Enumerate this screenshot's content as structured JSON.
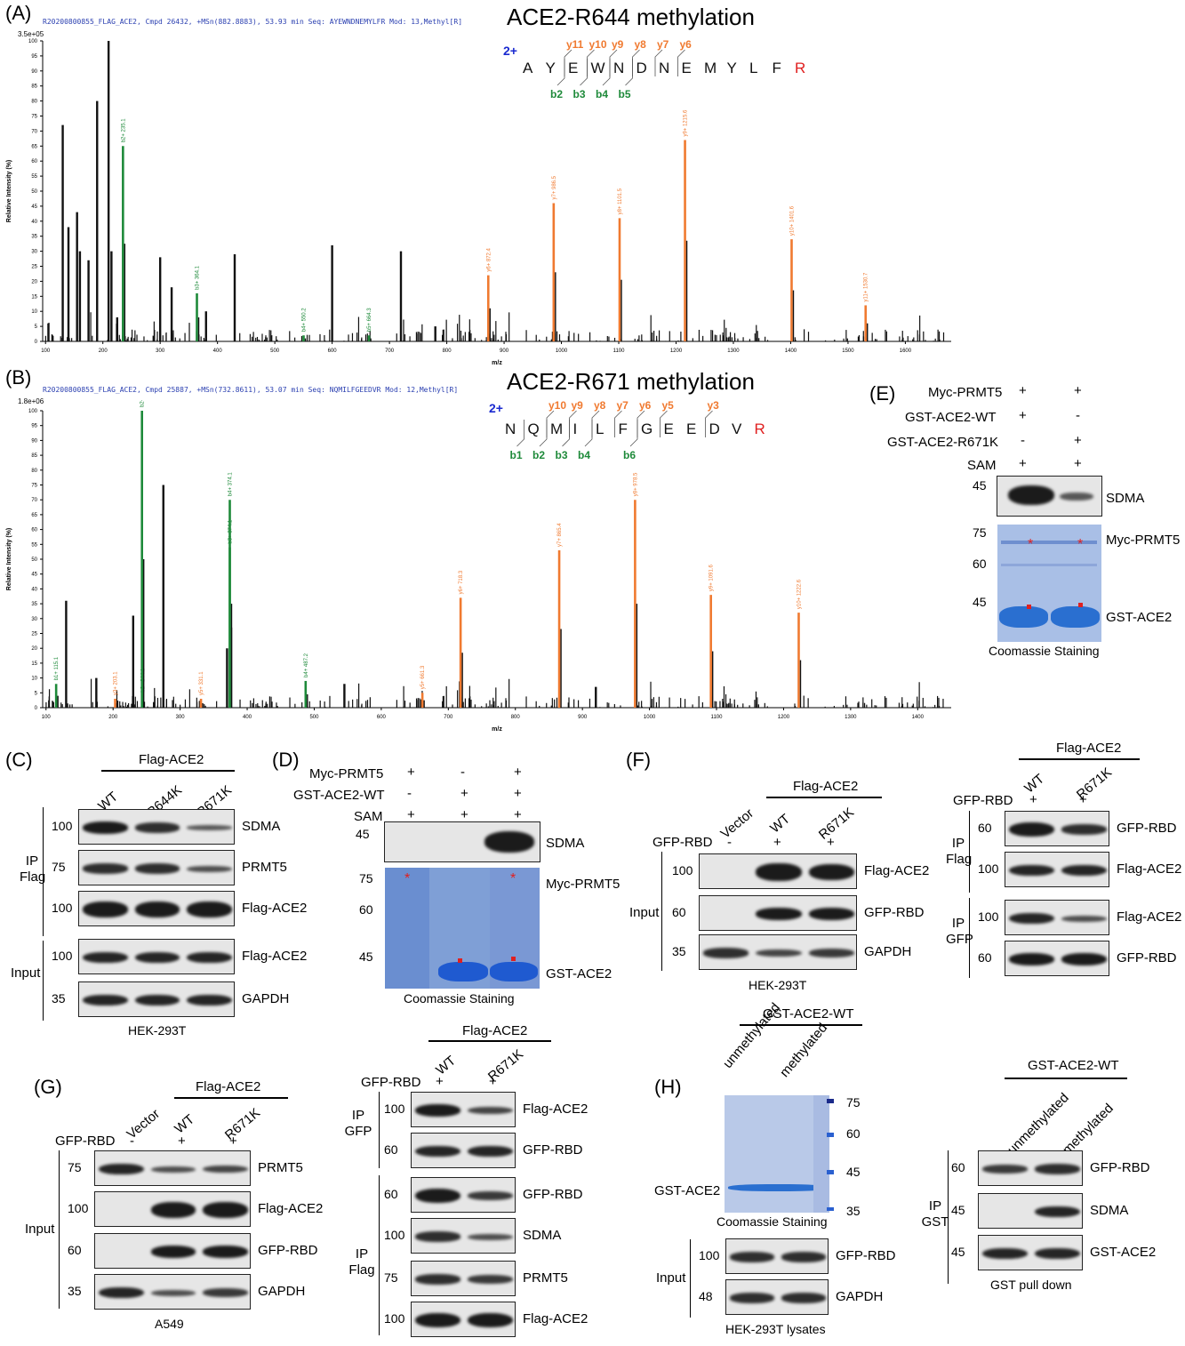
{
  "panelA": {
    "label": "(A)",
    "title": "ACE2-R644 methylation",
    "header": "R20200800855_FLAG_ACE2, Cmpd 26432, +MSn(882.8883), 53.93 min    Seq: AYEWNDNEMYLFR    Mod: 13,Methyl[R]",
    "scale": "3.5e+05",
    "charge": "2+",
    "sequence": [
      "A",
      "Y",
      "E",
      "W",
      "N",
      "D",
      "N",
      "E",
      "M",
      "Y",
      "L",
      "F",
      "R"
    ],
    "y_ions": [
      "y11",
      "y10",
      "y9",
      "y8",
      "y7",
      "y6"
    ],
    "b_ions": [
      "b2",
      "b3",
      "b4",
      "b5"
    ]
  },
  "panelB": {
    "label": "(B)",
    "title": "ACE2-R671 methylation",
    "header": "R20200800855_FLAG_ACE2, Cmpd 25887, +MSn(732.8611), 53.07 min    Seq: NQMILFGEEDVR    Mod: 12,Methyl[R]",
    "scale": "1.8e+06",
    "charge": "2+",
    "sequence": [
      "N",
      "Q",
      "M",
      "I",
      "L",
      "F",
      "G",
      "E",
      "E",
      "D",
      "V",
      "R"
    ],
    "y_ions": [
      "y10",
      "y9",
      "y8",
      "y7",
      "y6",
      "y5",
      "y3"
    ],
    "b_ions": [
      "b1",
      "b2",
      "b3",
      "b4",
      "b6"
    ]
  },
  "chart_data": [
    {
      "type": "bar",
      "title": "ACE2-R644 methylation",
      "xlabel": "m/z",
      "ylabel": "Relative Intensity (%)",
      "xlim": [
        95,
        1680
      ],
      "ylim": [
        0,
        100
      ],
      "x_ticks": [
        100,
        200,
        300,
        400,
        500,
        600,
        700,
        800,
        900,
        1000,
        1100,
        1200,
        1300,
        1400,
        1500,
        1600
      ],
      "y_ticks": [
        0,
        5,
        10,
        15,
        20,
        25,
        30,
        35,
        40,
        45,
        50,
        55,
        60,
        65,
        70,
        75,
        80,
        85,
        90,
        95,
        100
      ],
      "series": [
        {
          "x": [
            105,
            130,
            140,
            155,
            160,
            175,
            190,
            210,
            215,
            225,
            300,
            320,
            380,
            430,
            600,
            720,
            780
          ],
          "y": [
            6,
            72,
            38,
            43,
            30,
            27,
            80,
            100,
            30,
            8,
            28,
            18,
            10,
            29,
            32,
            30,
            5
          ]
        },
        {
          "x": [
            235.1,
            364.1,
            550.2,
            664.3
          ],
          "y": [
            65,
            16,
            2,
            2
          ],
          "labels": [
            "b2+ 235.1",
            "b3+ 364.1",
            "b4+ 550.2",
            "b5+ 664.3"
          ]
        },
        {
          "x": [
            872.4,
            986.5,
            1101.5,
            1215.6,
            1401.6,
            1530.7
          ],
          "y": [
            22,
            46,
            41,
            67,
            34,
            12
          ],
          "labels": [
            "y6+ 872.4",
            "y7+ 986.5",
            "y8+ 1101.5",
            "y9+ 1215.6",
            "y10+ 1401.6",
            "y11+ 1530.7"
          ]
        }
      ]
    },
    {
      "type": "bar",
      "title": "ACE2-R671 methylation",
      "xlabel": "m/z",
      "ylabel": "Relative Intensity (%)",
      "xlim": [
        95,
        1450
      ],
      "ylim": [
        0,
        100
      ],
      "x_ticks": [
        100,
        200,
        300,
        400,
        500,
        600,
        700,
        800,
        900,
        1000,
        1100,
        1200,
        1300,
        1400
      ],
      "y_ticks": [
        0,
        5,
        10,
        15,
        20,
        25,
        30,
        35,
        40,
        45,
        50,
        55,
        60,
        65,
        70,
        75,
        80,
        85,
        90,
        95,
        100
      ],
      "series": [
        {
          "x": [
            130,
            175,
            230,
            275,
            370,
            545,
            920
          ],
          "y": [
            36,
            10,
            31,
            75,
            20,
            8,
            7
          ]
        },
        {
          "x": [
            115.1,
            244.1,
            243.1,
            374.1,
            374.1,
            487.2
          ],
          "y": [
            8,
            4,
            100,
            54,
            70,
            9
          ],
          "labels": [
            "b1+ 115.1",
            "b2+ 244.1",
            "b2+ 243.1",
            "b3+ 374.1",
            "b4+ 374.1",
            "b4+ 487.2"
          ]
        },
        {
          "x": [
            203.1,
            331.1,
            661.3,
            718.3,
            865.4,
            978.5,
            1091.6,
            1222.6
          ],
          "y": [
            3,
            3,
            5,
            37,
            53,
            70,
            38,
            32
          ],
          "labels": [
            "y3+ 203.1",
            "y5+ 331.1",
            "y5+ 661.3",
            "y6+ 718.3",
            "y7+ 865.4",
            "y8+ 978.5",
            "y9+ 1091.6",
            "y10+ 1222.6"
          ]
        }
      ]
    }
  ],
  "panelC": {
    "label": "(C)",
    "group": "Flag-ACE2",
    "lanes": [
      "WT",
      "R644K",
      "R671K"
    ],
    "rows": [
      "SDMA",
      "PRMT5",
      "Flag-ACE2",
      "Flag-ACE2",
      "GAPDH"
    ],
    "mw": [
      "100",
      "75",
      "100",
      "100",
      "35"
    ],
    "ip": "IP Flag",
    "input": "Input",
    "cell": "HEK-293T"
  },
  "panelD": {
    "label": "(D)",
    "conditions": [
      {
        "name": "Myc-PRMT5",
        "v": [
          "+",
          "-",
          "+"
        ]
      },
      {
        "name": "GST-ACE2-WT",
        "v": [
          "-",
          "+",
          "+"
        ]
      },
      {
        "name": "SAM",
        "v": [
          "+",
          "+",
          "+"
        ]
      }
    ],
    "sdma": "SDMA",
    "mw_blot": "45",
    "mw_gel": [
      "75",
      "60",
      "45"
    ],
    "gel_labels": [
      "Myc-PRMT5",
      "GST-ACE2"
    ],
    "stain": "Coomassie Staining"
  },
  "panelE": {
    "label": "(E)",
    "conditions": [
      {
        "name": "Myc-PRMT5",
        "v": [
          "+",
          "+"
        ]
      },
      {
        "name": "GST-ACE2-WT",
        "v": [
          "+",
          "-"
        ]
      },
      {
        "name": "GST-ACE2-R671K",
        "v": [
          "-",
          "+"
        ]
      },
      {
        "name": "SAM",
        "v": [
          "+",
          "+"
        ]
      }
    ],
    "sdma": "SDMA",
    "mw_blot": "45",
    "mw_gel": [
      "75",
      "60",
      "45"
    ],
    "gel_labels": [
      "Myc-PRMT5",
      "GST-ACE2"
    ],
    "stain": "Coomassie Staining"
  },
  "panelF": {
    "label": "(F)",
    "group": "Flag-ACE2",
    "lanes": [
      "Vector",
      "WT",
      "R671K"
    ],
    "gfp_rbd": "GFP-RBD",
    "gfp_v": [
      "-",
      "+",
      "+"
    ],
    "rows": [
      "Flag-ACE2",
      "GFP-RBD",
      "GAPDH"
    ],
    "mw": [
      "100",
      "60",
      "35"
    ],
    "input": "Input",
    "cell": "HEK-293T",
    "right": {
      "group": "Flag-ACE2",
      "lanes": [
        "WT",
        "R671K"
      ],
      "gfp_v": [
        "+",
        "+"
      ],
      "rows": [
        "GFP-RBD",
        "Flag-ACE2",
        "Flag-ACE2",
        "GFP-RBD"
      ],
      "mw": [
        "60",
        "100",
        "100",
        "60"
      ],
      "ip1": "IP Flag",
      "ip2": "IP GFP"
    }
  },
  "panelG": {
    "label": "(G)",
    "group": "Flag-ACE2",
    "lanes": [
      "Vector",
      "WT",
      "R671K"
    ],
    "gfp_rbd": "GFP-RBD",
    "gfp_v": [
      "-",
      "+",
      "+"
    ],
    "rows": [
      "PRMT5",
      "Flag-ACE2",
      "GFP-RBD",
      "GAPDH"
    ],
    "mw": [
      "75",
      "100",
      "60",
      "35"
    ],
    "input": "Input",
    "cell": "A549",
    "right": {
      "group": "Flag-ACE2",
      "lanes": [
        "WT",
        "R671K"
      ],
      "gfp_v": [
        "+",
        "+"
      ],
      "rows": [
        "Flag-ACE2",
        "GFP-RBD",
        "GFP-RBD",
        "SDMA",
        "PRMT5",
        "Flag-ACE2"
      ],
      "mw": [
        "100",
        "60",
        "60",
        "100",
        "75",
        "100"
      ],
      "ip1": "IP GFP",
      "ip2": "IP Flag"
    }
  },
  "panelH": {
    "label": "(H)",
    "group": "GST-ACE2-WT",
    "lanes": [
      "unmethylated",
      "methylated"
    ],
    "gel_label": "GST-ACE2",
    "stain": "Coomassie Staining",
    "ladder": [
      "75",
      "60",
      "45",
      "35"
    ],
    "input_rows": [
      "GFP-RBD",
      "GAPDH"
    ],
    "input_mw": [
      "100",
      "48"
    ],
    "input": "Input",
    "cell": "HEK-293T lysates",
    "right": {
      "group": "GST-ACE2-WT",
      "lanes": [
        "unmethylated",
        "methylated"
      ],
      "rows": [
        "GFP-RBD",
        "SDMA",
        "GST-ACE2"
      ],
      "mw": [
        "60",
        "45",
        "45"
      ],
      "ip": "IP GST",
      "foot": "GST pull down"
    }
  }
}
